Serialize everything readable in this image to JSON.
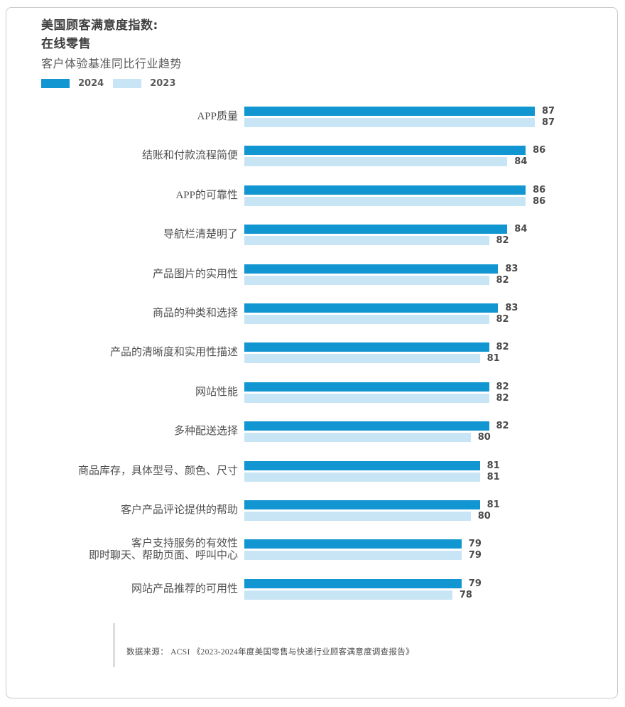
{
  "header": {
    "title_line1": "美国顾客满意度指数:",
    "title_line2": "在线零售",
    "subtitle": "客户体验基准同比行业趋势"
  },
  "legend": {
    "items": [
      {
        "label": "2024",
        "color": "#1196d2"
      },
      {
        "label": "2023",
        "color": "#c7e5f4"
      }
    ]
  },
  "colors": {
    "bar_2024": "#1196d2",
    "bar_2023": "#c7e5f4",
    "card_border": "#c9c9c9",
    "title_text": "#3f3f3f",
    "label_text": "#4f4f4f",
    "value_text": "#4a4a4a"
  },
  "chart_data": {
    "type": "bar",
    "orientation": "horizontal",
    "title": "美国顾客满意度指数: 在线零售 — 客户体验基准同比行业趋势",
    "xlabel": "",
    "ylabel": "",
    "grid": false,
    "legend_position": "top-left",
    "value_labels": "end-of-bar",
    "xlim": [
      55.3,
      87
    ],
    "categories": [
      "APP质量",
      "结账和付款流程简便",
      "APP的可靠性",
      "导航栏清楚明了",
      "产品图片的实用性",
      "商品的种类和选择",
      "产品的清晰度和实用性描述",
      "网站性能",
      "多种配送选择",
      "商品库存，具体型号、颜色、尺寸",
      "客户产品评论提供的帮助",
      "客户支持服务的有效性\n即时聊天、帮助页面、呼叫中心",
      "网站产品推荐的可用性"
    ],
    "series": [
      {
        "name": "2024",
        "color": "#1196d2",
        "values": [
          87,
          86,
          86,
          84,
          83,
          83,
          82,
          82,
          82,
          81,
          81,
          79,
          79
        ]
      },
      {
        "name": "2023",
        "color": "#c7e5f4",
        "values": [
          87,
          84,
          86,
          82,
          82,
          82,
          81,
          82,
          80,
          81,
          80,
          79,
          78
        ]
      }
    ]
  },
  "footer": {
    "source": "数据来源： ACSI 《2023-2024年度美国零售与快递行业顾客满意度调查报告》"
  }
}
